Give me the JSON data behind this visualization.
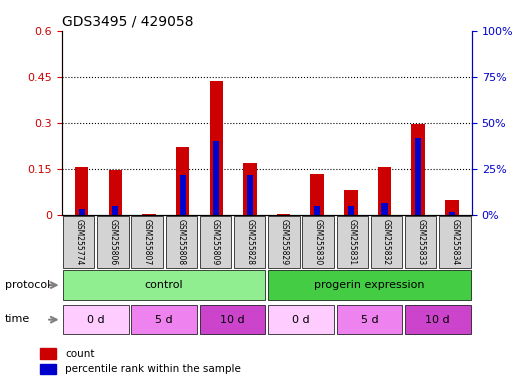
{
  "title": "GDS3495 / 429058",
  "samples": [
    "GSM255774",
    "GSM255806",
    "GSM255807",
    "GSM255808",
    "GSM255809",
    "GSM255828",
    "GSM255829",
    "GSM255830",
    "GSM255831",
    "GSM255832",
    "GSM255833",
    "GSM255834"
  ],
  "red_values": [
    0.155,
    0.145,
    0.002,
    0.22,
    0.435,
    0.17,
    0.002,
    0.135,
    0.08,
    0.155,
    0.295,
    0.05
  ],
  "blue_values": [
    0.02,
    0.03,
    0.0,
    0.13,
    0.24,
    0.13,
    0.0,
    0.03,
    0.03,
    0.04,
    0.25,
    0.01
  ],
  "ylim_left": [
    0,
    0.6
  ],
  "ylim_right": [
    0,
    100
  ],
  "yticks_left": [
    0,
    0.15,
    0.3,
    0.45,
    0.6
  ],
  "yticks_right": [
    0,
    25,
    50,
    75,
    100
  ],
  "ytick_labels_right": [
    "0%",
    "25%",
    "50%",
    "75%",
    "100%"
  ],
  "bar_color_red": "#cc0000",
  "bar_color_blue": "#0000cc",
  "bar_width": 0.4,
  "tick_label_color_left": "#cc0000",
  "tick_label_color_right": "#0000cc",
  "background_color": "#ffffff",
  "sample_bg_color": "#d3d3d3",
  "proto_groups": [
    {
      "label": "control",
      "xstart": 0,
      "xend": 6,
      "color": "#90ee90"
    },
    {
      "label": "progerin expression",
      "xstart": 6,
      "xend": 12,
      "color": "#44cc44"
    }
  ],
  "time_groups": [
    {
      "label": "0 d",
      "xstart": 0,
      "xend": 2,
      "color": "#ffccff"
    },
    {
      "label": "5 d",
      "xstart": 2,
      "xend": 4,
      "color": "#ee82ee"
    },
    {
      "label": "10 d",
      "xstart": 4,
      "xend": 6,
      "color": "#cc44cc"
    },
    {
      "label": "0 d",
      "xstart": 6,
      "xend": 8,
      "color": "#ffccff"
    },
    {
      "label": "5 d",
      "xstart": 8,
      "xend": 10,
      "color": "#ee82ee"
    },
    {
      "label": "10 d",
      "xstart": 10,
      "xend": 12,
      "color": "#cc44cc"
    }
  ]
}
